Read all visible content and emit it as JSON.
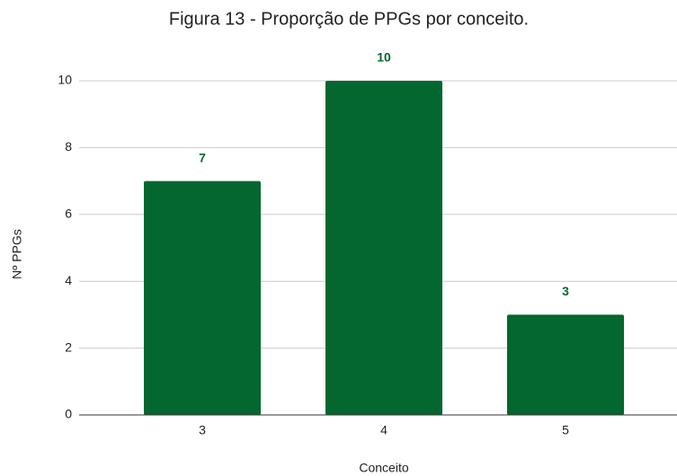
{
  "chart_data": {
    "type": "bar",
    "title": "Figura 13 - Proporção de PPGs por conceito.",
    "x_label": "Conceito",
    "y_label": "Nº PPGs",
    "categories": [
      "3",
      "4",
      "5"
    ],
    "values": [
      7,
      10,
      3
    ],
    "color": "#03672f",
    "ylim": [
      0,
      10
    ],
    "yticks": [
      0,
      2,
      4,
      6,
      8,
      10
    ],
    "grid": true,
    "data_labels": true
  }
}
